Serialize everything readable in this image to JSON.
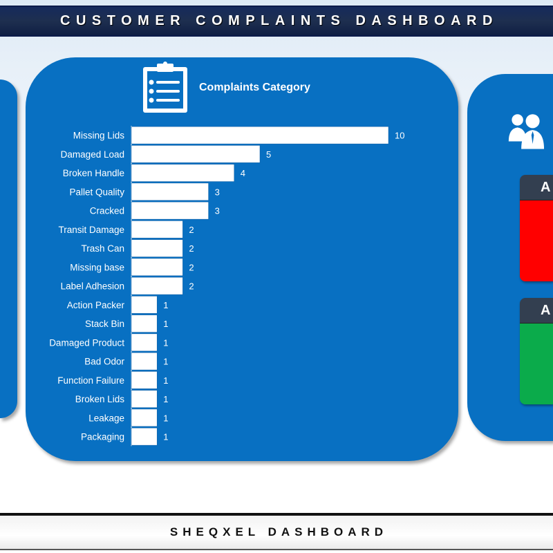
{
  "header": {
    "title": "CUSTOMER COMPLAINTS DASHBOARD"
  },
  "footer": {
    "title": "SHEQXEL DASHBOARD"
  },
  "icons": {
    "chart": "clipboard-list-icon",
    "right_panel": "people-icon"
  },
  "cards": [
    {
      "label": "A",
      "color": "#ff0000"
    },
    {
      "label": "A",
      "color": "#0bab4b"
    }
  ],
  "colors": {
    "panel": "#0870c2",
    "bar": "#ffffff",
    "header": "#1e2f4f"
  },
  "chart_data": {
    "type": "bar",
    "orientation": "horizontal",
    "title": "Complaints Category",
    "categories": [
      "Missing Lids",
      "Damaged Load",
      "Broken Handle",
      "Pallet Quality",
      "Cracked",
      "Transit Damage",
      "Trash Can",
      "Missing base",
      "Label Adhesion",
      "Action Packer",
      "Stack Bin",
      "Damaged Product",
      "Bad Odor",
      "Function Failure",
      "Broken Lids",
      "Leakage",
      "Packaging"
    ],
    "values": [
      10,
      5,
      4,
      3,
      3,
      2,
      2,
      2,
      2,
      1,
      1,
      1,
      1,
      1,
      1,
      1,
      1
    ],
    "xlim": [
      0,
      10
    ],
    "grid": false,
    "data_labels": true
  }
}
